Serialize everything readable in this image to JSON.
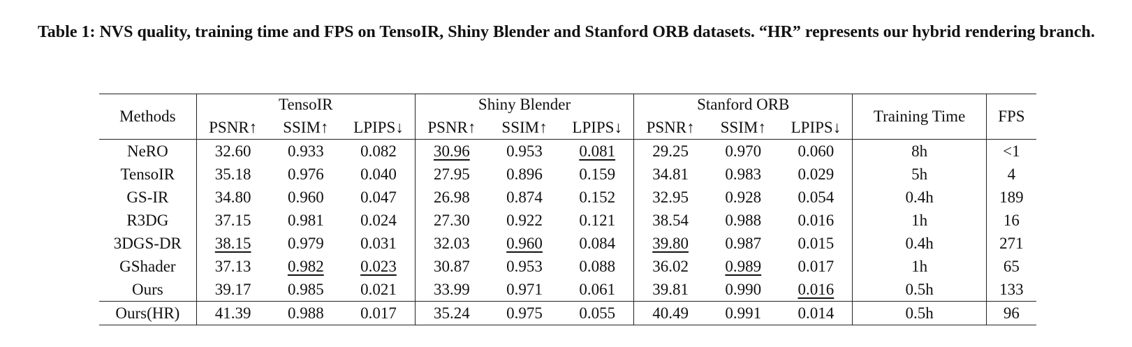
{
  "caption": "Table 1: NVS quality, training time and FPS on TensoIR, Shiny Blender and Stanford ORB datasets. “HR” represents our hybrid rendering branch.",
  "table": {
    "methods_header": "Methods",
    "groups": [
      "TensoIR",
      "Shiny Blender",
      "Stanford ORB"
    ],
    "metrics": [
      "PSNR↑",
      "SSIM↑",
      "LPIPS↓",
      "PSNR↑",
      "SSIM↑",
      "LPIPS↓",
      "PSNR↑",
      "SSIM↑",
      "LPIPS↓"
    ],
    "training_time_header": "Training Time",
    "fps_header": "FPS",
    "rows": [
      {
        "method": "NeRO",
        "values": [
          "32.60",
          "0.933",
          "0.082",
          "30.96",
          "0.953",
          "0.081",
          "29.25",
          "0.970",
          "0.060"
        ],
        "time": "8h",
        "fps": "<1"
      },
      {
        "method": "TensoIR",
        "values": [
          "35.18",
          "0.976",
          "0.040",
          "27.95",
          "0.896",
          "0.159",
          "34.81",
          "0.983",
          "0.029"
        ],
        "time": "5h",
        "fps": "4"
      },
      {
        "method": "GS-IR",
        "values": [
          "34.80",
          "0.960",
          "0.047",
          "26.98",
          "0.874",
          "0.152",
          "32.95",
          "0.928",
          "0.054"
        ],
        "time": "0.4h",
        "fps": "189"
      },
      {
        "method": "R3DG",
        "values": [
          "37.15",
          "0.981",
          "0.024",
          "27.30",
          "0.922",
          "0.121",
          "38.54",
          "0.988",
          "0.016"
        ],
        "time": "1h",
        "fps": "16"
      },
      {
        "method": "3DGS-DR",
        "values": [
          "38.15",
          "0.979",
          "0.031",
          "32.03",
          "0.960",
          "0.084",
          "39.80",
          "0.987",
          "0.015"
        ],
        "time": "0.4h",
        "fps": "271"
      },
      {
        "method": "GShader",
        "values": [
          "37.13",
          "0.982",
          "0.023",
          "30.87",
          "0.953",
          "0.088",
          "36.02",
          "0.989",
          "0.017"
        ],
        "time": "1h",
        "fps": "65"
      },
      {
        "method": "Ours",
        "values": [
          "39.17",
          "0.985",
          "0.021",
          "33.99",
          "0.971",
          "0.061",
          "39.81",
          "0.990",
          "0.016"
        ],
        "time": "0.5h",
        "fps": "133"
      },
      {
        "method": "Ours(HR)",
        "values": [
          "41.39",
          "0.988",
          "0.017",
          "35.24",
          "0.975",
          "0.055",
          "40.49",
          "0.991",
          "0.014"
        ],
        "time": "0.5h",
        "fps": "96"
      }
    ]
  }
}
